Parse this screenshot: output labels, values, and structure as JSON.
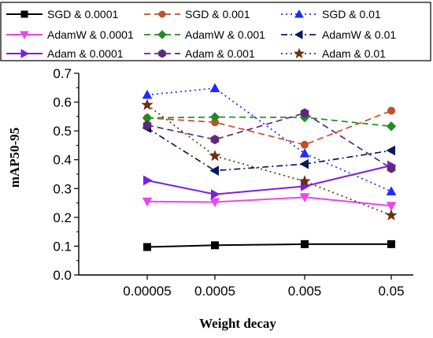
{
  "chart_data": {
    "type": "line",
    "title": "",
    "xlabel": "Weight decay",
    "ylabel": "mAP50-95",
    "categories": [
      "0.00005",
      "0.0005",
      "0.005",
      "0.05"
    ],
    "ylim": [
      0.0,
      0.7
    ],
    "yticks": [
      "0.0",
      "0.1",
      "0.2",
      "0.3",
      "0.4",
      "0.5",
      "0.6",
      "0.7"
    ],
    "legend_position": "top",
    "series": [
      {
        "name": "SGD & 0.0001",
        "values": [
          0.097,
          0.103,
          0.107,
          0.107
        ],
        "color": "#000000",
        "dash": "solid",
        "marker": "square"
      },
      {
        "name": "SGD & 0.001",
        "values": [
          0.545,
          0.53,
          0.452,
          0.57
        ],
        "color": "#c0502a",
        "dash": "dash",
        "marker": "circle"
      },
      {
        "name": "SGD & 0.01",
        "values": [
          0.625,
          0.648,
          0.422,
          0.29
        ],
        "color": "#1e2bff",
        "dash": "dot",
        "marker": "triangle-up"
      },
      {
        "name": "AdamW & 0.0001",
        "values": [
          0.255,
          0.253,
          0.27,
          0.24
        ],
        "color": "#ee44ee",
        "dash": "solid",
        "marker": "triangle-down"
      },
      {
        "name": "AdamW & 0.001",
        "values": [
          0.545,
          0.548,
          0.547,
          0.516
        ],
        "color": "#228b22",
        "dash": "dash",
        "marker": "diamond"
      },
      {
        "name": "AdamW & 0.01",
        "values": [
          0.51,
          0.362,
          0.385,
          0.432
        ],
        "color": "#0a1a5c",
        "dash": "dashdot",
        "marker": "triangle-left"
      },
      {
        "name": "Adam & 0.0001",
        "values": [
          0.328,
          0.28,
          0.308,
          0.38
        ],
        "color": "#7b1fdd",
        "dash": "solid",
        "marker": "triangle-right"
      },
      {
        "name": "Adam & 0.001",
        "values": [
          0.52,
          0.47,
          0.562,
          0.37
        ],
        "color": "#5c2a7a",
        "dash": "dash",
        "marker": "hexagon"
      },
      {
        "name": "Adam & 0.01",
        "values": [
          0.59,
          0.413,
          0.325,
          0.207
        ],
        "color": "#6a2f10",
        "dash": "dot",
        "marker": "star"
      }
    ]
  }
}
